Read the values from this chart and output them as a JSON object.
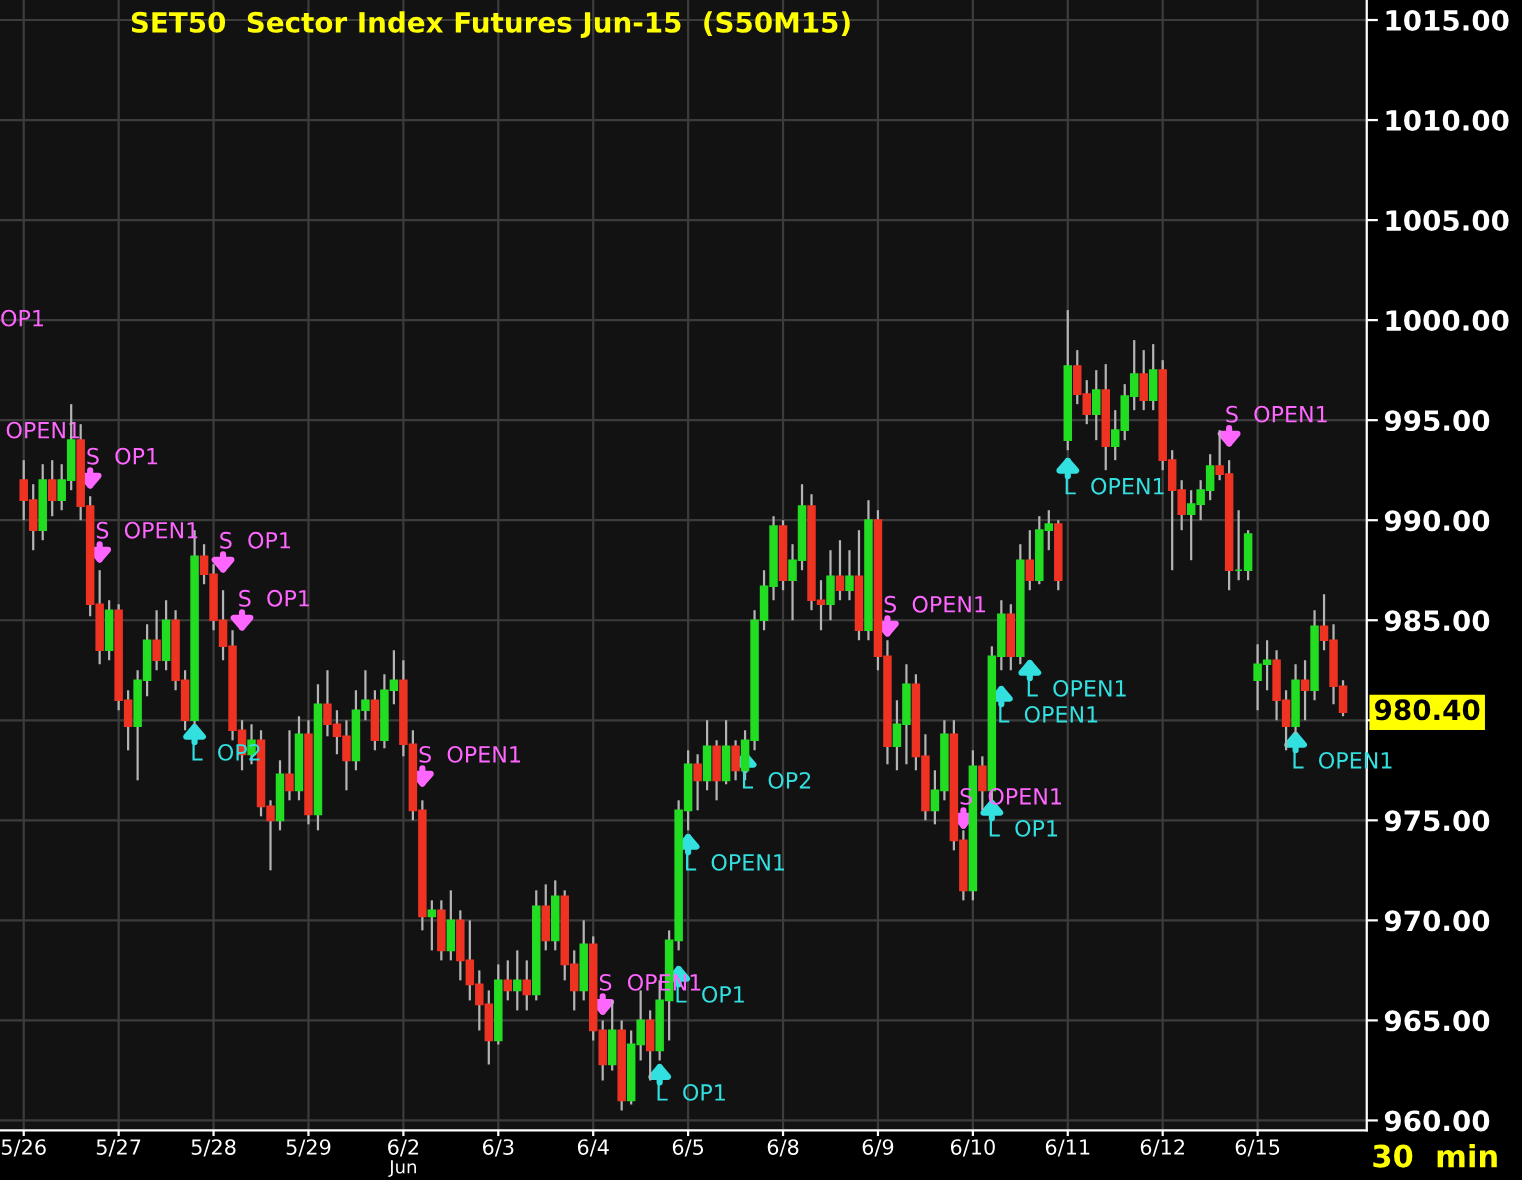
{
  "chart_data": {
    "type": "candlestick",
    "title": "SET50  Sector Index Futures Jun-15  (S50M15)",
    "grid": true,
    "ylim": [
      959.5,
      1016
    ],
    "yticks": [
      {
        "value": 960,
        "label": "960.00"
      },
      {
        "value": 965,
        "label": "965.00"
      },
      {
        "value": 970,
        "label": "970.00"
      },
      {
        "value": 975,
        "label": "975.00"
      },
      {
        "value": 980,
        "label": null
      },
      {
        "value": 985,
        "label": "985.00"
      },
      {
        "value": 990,
        "label": "990.00"
      },
      {
        "value": 995,
        "label": "995.00"
      },
      {
        "value": 1000,
        "label": "1000.00"
      },
      {
        "value": 1005,
        "label": "1005.00"
      },
      {
        "value": 1010,
        "label": "1010.00"
      },
      {
        "value": 1015,
        "label": "1015.00"
      }
    ],
    "categories": [
      "5/26",
      null,
      null,
      null,
      null,
      null,
      null,
      null,
      null,
      null,
      "5/27",
      null,
      null,
      null,
      null,
      null,
      null,
      null,
      null,
      null,
      "5/28",
      null,
      null,
      null,
      null,
      null,
      null,
      null,
      null,
      null,
      "5/29",
      null,
      null,
      null,
      null,
      null,
      null,
      null,
      null,
      null,
      "6/2",
      null,
      null,
      null,
      null,
      null,
      null,
      null,
      null,
      null,
      "6/3",
      null,
      null,
      null,
      null,
      null,
      null,
      null,
      null,
      null,
      "6/4",
      null,
      null,
      null,
      null,
      null,
      null,
      null,
      null,
      null,
      "6/5",
      null,
      null,
      null,
      null,
      null,
      null,
      null,
      null,
      null,
      "6/8",
      null,
      null,
      null,
      null,
      null,
      null,
      null,
      null,
      null,
      "6/9",
      null,
      null,
      null,
      null,
      null,
      null,
      null,
      null,
      null,
      "6/10",
      null,
      null,
      null,
      null,
      null,
      null,
      null,
      null,
      null,
      "6/11",
      null,
      null,
      null,
      null,
      null,
      null,
      null,
      null,
      null,
      "6/12",
      null,
      null,
      null,
      null,
      null,
      null,
      null,
      null,
      null,
      "6/15",
      null,
      null,
      null,
      null,
      null,
      null,
      null,
      null,
      null
    ],
    "ohlc": [
      [
        992,
        993,
        990,
        991
      ],
      [
        991,
        991.8,
        988.5,
        989.5
      ],
      [
        989.5,
        992.8,
        989,
        992
      ],
      [
        992,
        993,
        990.2,
        991
      ],
      [
        991,
        992.8,
        990.5,
        992
      ],
      [
        992,
        995.8,
        991.5,
        994
      ],
      [
        994,
        994.8,
        990,
        990.7
      ],
      [
        990.7,
        991.2,
        985.2,
        985.8
      ],
      [
        985.8,
        987.5,
        982.8,
        983.5
      ],
      [
        983.5,
        986,
        983,
        985.5
      ],
      [
        985.5,
        985.8,
        980.5,
        981
      ],
      [
        981,
        981.5,
        978.5,
        979.7
      ],
      [
        979.7,
        982.5,
        977,
        982
      ],
      [
        982,
        984.8,
        981.2,
        984
      ],
      [
        984,
        985.5,
        982.5,
        983
      ],
      [
        983,
        986,
        982.5,
        985
      ],
      [
        985,
        985.5,
        981.5,
        982
      ],
      [
        982,
        982.5,
        979.5,
        980
      ],
      [
        980,
        989.5,
        979.8,
        988.2
      ],
      [
        988.2,
        988.8,
        986.8,
        987.3
      ],
      [
        987.3,
        987.8,
        984.5,
        985
      ],
      [
        985,
        986.5,
        983,
        983.7
      ],
      [
        983.7,
        984.5,
        979,
        979.5
      ],
      [
        979.5,
        980,
        977.5,
        978.3
      ],
      [
        978.3,
        979.8,
        977.8,
        979
      ],
      [
        979,
        979.5,
        975.2,
        975.7
      ],
      [
        975.7,
        976,
        972.5,
        975
      ],
      [
        975,
        978,
        974.5,
        977.3
      ],
      [
        977.3,
        979.5,
        976,
        976.5
      ],
      [
        976.5,
        980.2,
        976,
        979.3
      ],
      [
        979.3,
        980,
        974.8,
        975.3
      ],
      [
        975.3,
        981.8,
        974.5,
        980.8
      ],
      [
        980.8,
        982.5,
        979.2,
        979.8
      ],
      [
        979.8,
        980.5,
        978.3,
        979.2
      ],
      [
        979.2,
        980,
        976.5,
        978
      ],
      [
        978,
        981.5,
        977.5,
        980.5
      ],
      [
        980.5,
        982.5,
        980,
        981
      ],
      [
        981,
        981.5,
        978.5,
        979
      ],
      [
        979,
        982.3,
        978.6,
        981.5
      ],
      [
        981.5,
        983.5,
        980.8,
        982
      ],
      [
        982,
        983,
        978.2,
        978.8
      ],
      [
        978.8,
        979.5,
        975,
        975.5
      ],
      [
        975.5,
        976,
        969.5,
        970.2
      ],
      [
        970.2,
        971,
        968.5,
        970.5
      ],
      [
        970.5,
        971,
        968,
        968.5
      ],
      [
        968.5,
        971.5,
        968,
        970
      ],
      [
        970,
        970.5,
        967,
        968
      ],
      [
        968,
        970,
        966,
        966.8
      ],
      [
        966.8,
        967.5,
        964.5,
        965.8
      ],
      [
        965.8,
        966.5,
        962.8,
        964
      ],
      [
        964,
        967.8,
        963.8,
        967
      ],
      [
        967,
        968,
        966,
        966.5
      ],
      [
        966.5,
        968.5,
        965.5,
        967
      ],
      [
        967,
        968,
        965.5,
        966.3
      ],
      [
        966.3,
        971.5,
        966,
        970.7
      ],
      [
        970.7,
        971.8,
        968.5,
        969
      ],
      [
        969,
        972,
        968.5,
        971.2
      ],
      [
        971.2,
        971.5,
        967,
        967.8
      ],
      [
        967.8,
        968.5,
        965.5,
        966.5
      ],
      [
        966.5,
        970,
        966,
        968.8
      ],
      [
        968.8,
        969.2,
        964,
        964.5
      ],
      [
        964.5,
        965,
        962,
        962.8
      ],
      [
        962.8,
        966,
        962.5,
        964.5
      ],
      [
        964.5,
        965,
        960.5,
        961
      ],
      [
        961,
        964.5,
        960.8,
        963.8
      ],
      [
        963.8,
        966.5,
        963,
        965
      ],
      [
        965,
        965.5,
        962,
        963.5
      ],
      [
        963.5,
        967,
        963,
        966
      ],
      [
        966,
        969.5,
        964,
        969
      ],
      [
        969,
        976,
        968.5,
        975.5
      ],
      [
        975.5,
        978.5,
        974.5,
        977.8
      ],
      [
        977.8,
        978.3,
        975.5,
        977
      ],
      [
        977,
        980,
        976.5,
        978.7
      ],
      [
        978.7,
        979,
        976,
        977
      ],
      [
        977,
        980,
        976.8,
        978.7
      ],
      [
        978.7,
        979,
        977,
        977.5
      ],
      [
        977.5,
        979.5,
        977,
        979
      ],
      [
        979,
        985.5,
        978.5,
        985
      ],
      [
        985,
        987.5,
        984.5,
        986.7
      ],
      [
        986.7,
        990.2,
        986,
        989.7
      ],
      [
        989.7,
        990,
        986.5,
        987
      ],
      [
        987,
        988.8,
        985,
        988
      ],
      [
        988,
        991.8,
        987.5,
        990.7
      ],
      [
        990.7,
        991.3,
        985.5,
        986
      ],
      [
        986,
        987,
        984.5,
        985.8
      ],
      [
        985.8,
        988.5,
        985,
        987.2
      ],
      [
        987.2,
        989,
        986,
        986.5
      ],
      [
        986.5,
        988.5,
        986,
        987.2
      ],
      [
        987.2,
        989.5,
        984,
        984.5
      ],
      [
        984.5,
        991,
        984,
        990
      ],
      [
        990,
        990.5,
        982.5,
        983.2
      ],
      [
        983.2,
        984,
        977.8,
        978.7
      ],
      [
        978.7,
        981,
        977.5,
        979.8
      ],
      [
        979.8,
        982.8,
        977.8,
        981.8
      ],
      [
        981.8,
        982.3,
        977.5,
        978.2
      ],
      [
        978.2,
        979.3,
        975,
        975.5
      ],
      [
        975.5,
        977.5,
        974.8,
        976.5
      ],
      [
        976.5,
        980,
        976,
        979.3
      ],
      [
        979.3,
        980,
        973.5,
        974
      ],
      [
        974,
        974.5,
        971,
        971.5
      ],
      [
        971.5,
        978.5,
        971,
        977.7
      ],
      [
        977.7,
        978.2,
        975.5,
        976.5
      ],
      [
        976.5,
        983.7,
        976,
        983.2
      ],
      [
        983.2,
        986,
        982.5,
        985.3
      ],
      [
        985.3,
        985.8,
        982.5,
        983.2
      ],
      [
        983.2,
        988.8,
        982.8,
        988
      ],
      [
        988,
        989.5,
        986.5,
        987
      ],
      [
        987,
        990.2,
        986.8,
        989.5
      ],
      [
        989.5,
        990.5,
        988.5,
        989.8
      ],
      [
        989.8,
        990,
        986.5,
        987
      ],
      [
        994,
        1000.5,
        993.5,
        997.7
      ],
      [
        997.7,
        998.5,
        995.8,
        996.3
      ],
      [
        996.3,
        997,
        994.8,
        995.3
      ],
      [
        995.3,
        997.5,
        994,
        996.5
      ],
      [
        996.5,
        997.8,
        992.5,
        993.7
      ],
      [
        993.7,
        995.5,
        993,
        994.5
      ],
      [
        994.5,
        996.8,
        994,
        996.2
      ],
      [
        996.2,
        999,
        995.5,
        997.3
      ],
      [
        997.3,
        998.5,
        995.5,
        996
      ],
      [
        996,
        998.8,
        995.5,
        997.5
      ],
      [
        997.5,
        998,
        992.5,
        993
      ],
      [
        993,
        993.5,
        987.5,
        991.5
      ],
      [
        991.5,
        992,
        989.5,
        990.3
      ],
      [
        990.3,
        991.5,
        988,
        990.8
      ],
      [
        990.8,
        992,
        990,
        991.5
      ],
      [
        991.5,
        993.3,
        991,
        992.7
      ],
      [
        992.7,
        994.5,
        992,
        992.3
      ],
      [
        992.3,
        993,
        986.5,
        987.5
      ],
      [
        987.5,
        990.5,
        987,
        987.5
      ],
      [
        987.5,
        989.5,
        987,
        989.3
      ],
      [
        982,
        983.8,
        980.5,
        982.8
      ],
      [
        982.8,
        984,
        981.5,
        983
      ],
      [
        983,
        983.5,
        980,
        981
      ],
      [
        981,
        981.5,
        978.5,
        979.7
      ],
      [
        979.7,
        982.8,
        979.3,
        982
      ],
      [
        982,
        983,
        980,
        981.5
      ],
      [
        981.5,
        985.5,
        981,
        984.7
      ],
      [
        984.7,
        986.3,
        983.5,
        984
      ],
      [
        984,
        984.8,
        980.8,
        981.7
      ],
      [
        981.7,
        982,
        980.2,
        980.4
      ]
    ],
    "colors": [
      "#ee3322",
      "#ee3322",
      "#22dd22",
      "#ee3322",
      "#22dd22",
      "#22dd22",
      "#ee3322",
      "#ee3322",
      "#ee3322",
      "#22dd22",
      "#ee3322",
      "#ee3322",
      "#22dd22",
      "#22dd22",
      "#ee3322",
      "#22dd22",
      "#ee3322",
      "#ee3322",
      "#22dd22",
      "#ee3322",
      "#ee3322",
      "#ee3322",
      "#ee3322",
      "#ee3322",
      "#22dd22",
      "#ee3322",
      "#ee3322",
      "#22dd22",
      "#ee3322",
      "#22dd22",
      "#ee3322",
      "#22dd22",
      "#ee3322",
      "#ee3322",
      "#ee3322",
      "#22dd22",
      "#22dd22",
      "#ee3322",
      "#22dd22",
      "#22dd22",
      "#ee3322",
      "#ee3322",
      "#ee3322",
      "#22dd22",
      "#ee3322",
      "#22dd22",
      "#ee3322",
      "#ee3322",
      "#ee3322",
      "#ee3322",
      "#22dd22",
      "#ee3322",
      "#22dd22",
      "#ee3322",
      "#22dd22",
      "#ee3322",
      "#22dd22",
      "#ee3322",
      "#ee3322",
      "#22dd22",
      "#ee3322",
      "#ee3322",
      "#22dd22",
      "#ee3322",
      "#22dd22",
      "#22dd22",
      "#ee3322",
      "#22dd22",
      "#22dd22",
      "#22dd22",
      "#22dd22",
      "#ee3322",
      "#22dd22",
      "#ee3322",
      "#22dd22",
      "#ee3322",
      "#22dd22",
      "#22dd22",
      "#22dd22",
      "#22dd22",
      "#ee3322",
      "#22dd22",
      "#22dd22",
      "#ee3322",
      "#ee3322",
      "#22dd22",
      "#ee3322",
      "#22dd22",
      "#ee3322",
      "#22dd22",
      "#ee3322",
      "#ee3322",
      "#22dd22",
      "#22dd22",
      "#ee3322",
      "#ee3322",
      "#22dd22",
      "#22dd22",
      "#ee3322",
      "#ee3322",
      "#22dd22",
      "#ee3322",
      "#22dd22",
      "#22dd22",
      "#ee3322",
      "#22dd22",
      "#ee3322",
      "#22dd22",
      "#22dd22",
      "#ee3322",
      "#22dd22",
      "#ee3322",
      "#ee3322",
      "#22dd22",
      "#ee3322",
      "#22dd22",
      "#22dd22",
      "#22dd22",
      "#ee3322",
      "#22dd22",
      "#ee3322",
      "#ee3322",
      "#ee3322",
      "#22dd22",
      "#22dd22",
      "#22dd22",
      "#ee3322",
      "#ee3322",
      "#22dd22",
      "#22dd22",
      "#22dd22",
      "#22dd22",
      "#ee3322",
      "#ee3322",
      "#22dd22",
      "#ee3322",
      "#22dd22",
      "#ee3322",
      "#ee3322",
      "#ee3322"
    ],
    "annotations": [
      "OP1",
      "OPEN1",
      "S  OP1",
      "S  OPEN1",
      "L  OP2",
      "S  OP1",
      "S  OP1",
      "S  OPEN1",
      "S  OPEN1",
      "L  OP1",
      "L  OP1",
      "L  OPEN1",
      "L  OP2",
      "S  OPEN1",
      "S  OPEN1",
      "L  OP1",
      "L  OPEN1",
      "L  OPEN1",
      "L  OPEN1",
      "S  OPEN1",
      "L  OPEN1",
      "980.40",
      "Jun",
      "30  min"
    ]
  }
}
